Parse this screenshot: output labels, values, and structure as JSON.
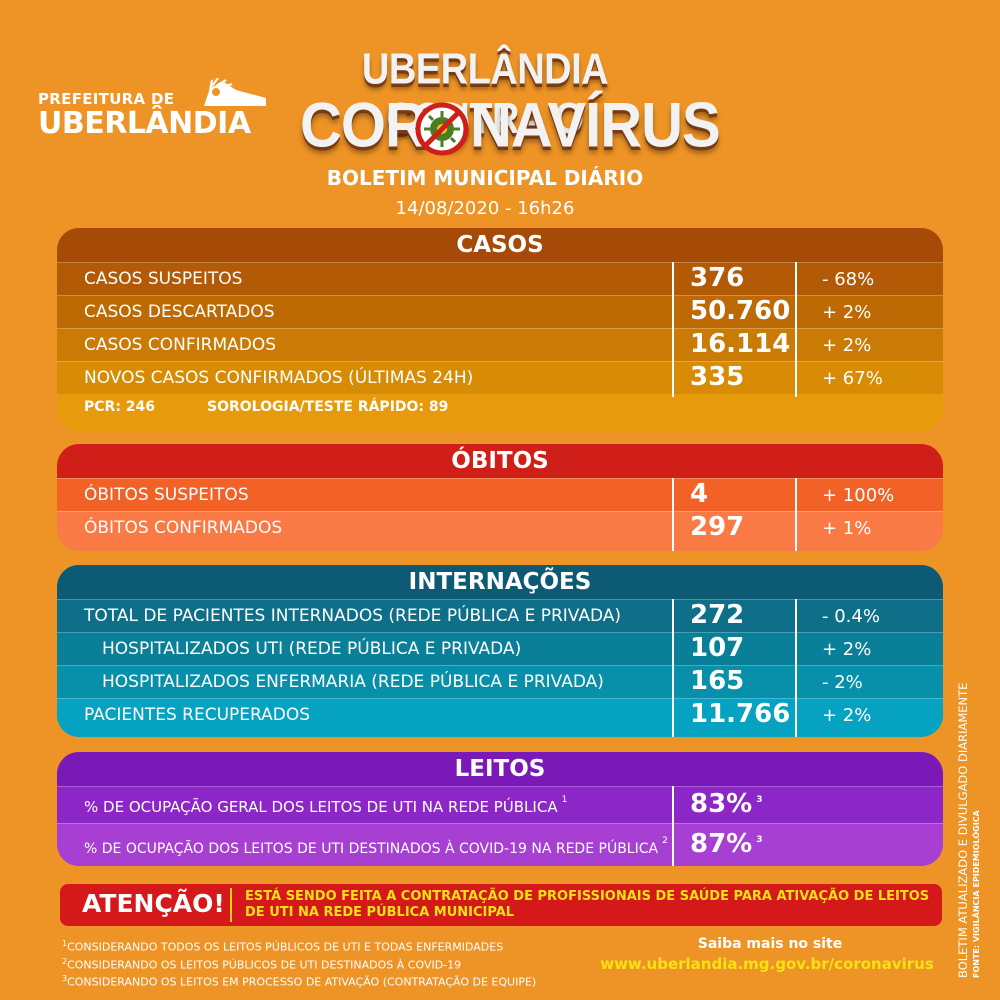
{
  "colors": {
    "background": "#ee9426",
    "casos_header": "#a64a08",
    "obitos_header": "#d01e18",
    "internacoes_header": "#0c5a73",
    "leitos_header": "#7a18b8",
    "alert_bg": "#d5181a",
    "alert_text": "#f6e212"
  },
  "logo": {
    "line1": "PREFEITURA DE",
    "line2": "UBERLÂNDIA"
  },
  "campaign": {
    "line1": "UBERLÂNDIA CONTRA O",
    "line2": "CORONAVÍRUS",
    "icon": "no-virus-icon"
  },
  "bulletin": {
    "title": "BOLETIM MUNICIPAL DIÁRIO",
    "date": "14/08/2020 - 16h26"
  },
  "casos": {
    "title": "CASOS",
    "rows": [
      {
        "label": "CASOS SUSPEITOS",
        "value": "376",
        "change": "- 68%"
      },
      {
        "label": "CASOS DESCARTADOS",
        "value": "50.760",
        "change": "+ 2%"
      },
      {
        "label": "CASOS CONFIRMADOS",
        "value": "16.114",
        "change": "+ 2%"
      },
      {
        "label": "NOVOS CASOS CONFIRMADOS (ÚLTIMAS 24H)",
        "value": "335",
        "change": "+ 67%"
      }
    ],
    "pcr": "PCR: 246",
    "sorologia": "SOROLOGIA/TESTE RÁPIDO: 89"
  },
  "obitos": {
    "title": "ÓBITOS",
    "rows": [
      {
        "label": "ÓBITOS SUSPEITOS",
        "value": "4",
        "change": "+ 100%"
      },
      {
        "label": "ÓBITOS CONFIRMADOS",
        "value": "297",
        "change": "+ 1%"
      }
    ]
  },
  "internacoes": {
    "title": "INTERNAÇÕES",
    "rows": [
      {
        "label": "TOTAL DE PACIENTES INTERNADOS (REDE PÚBLICA E PRIVADA)",
        "value": "272",
        "change": "- 0.4%"
      },
      {
        "label": "HOSPITALIZADOS UTI (REDE PÚBLICA E PRIVADA)",
        "value": "107",
        "change": "+ 2%"
      },
      {
        "label": "HOSPITALIZADOS ENFERMARIA (REDE PÚBLICA E PRIVADA)",
        "value": "165",
        "change": "- 2%"
      },
      {
        "label": "PACIENTES RECUPERADOS",
        "value": "11.766",
        "change": "+ 2%"
      }
    ]
  },
  "leitos": {
    "title": "LEITOS",
    "rows": [
      {
        "label": "% DE OCUPAÇÃO GERAL DOS LEITOS DE UTI NA REDE PÚBLICA",
        "label_note": "1",
        "value": "83%",
        "value_note": "3"
      },
      {
        "label": "% DE OCUPAÇÃO DOS LEITOS DE UTI DESTINADOS À COVID-19 NA REDE PÚBLICA",
        "label_note": "2",
        "value": "87%",
        "value_note": "3"
      }
    ]
  },
  "alert": {
    "label": "ATENÇÃO!",
    "line1": "ESTÁ SENDO FEITA A CONTRATAÇÃO DE PROFISSIONAIS DE SAÚDE PARA ATIVAÇÃO DE LEITOS",
    "line2": "DE UTI NA REDE PÚBLICA MUNICIPAL"
  },
  "footnotes": [
    {
      "mark": "1",
      "text": "CONSIDERANDO TODOS OS LEITOS PÚBLICOS DE UTI E TODAS ENFERMIDADES"
    },
    {
      "mark": "2",
      "text": "CONSIDERANDO OS LEITOS PÚBLICOS  DE UTI DESTINADOS À COVID-19"
    },
    {
      "mark": "3",
      "text": "CONSIDERANDO OS LEITOS EM PROCESSO DE ATIVAÇÃO (CONTRATAÇÃO DE EQUIPE)"
    }
  ],
  "more_info": {
    "label": "Saiba mais no site",
    "url": "www.uberlandia.mg.gov.br/coronavirus"
  },
  "side_note": {
    "line1": "BOLETIM ATUALIZADO  E DIVULGADO DIARIAMENTE",
    "line2": "FONTE: VIGILÂNCIA EPIDEMIOLÓGICA"
  }
}
